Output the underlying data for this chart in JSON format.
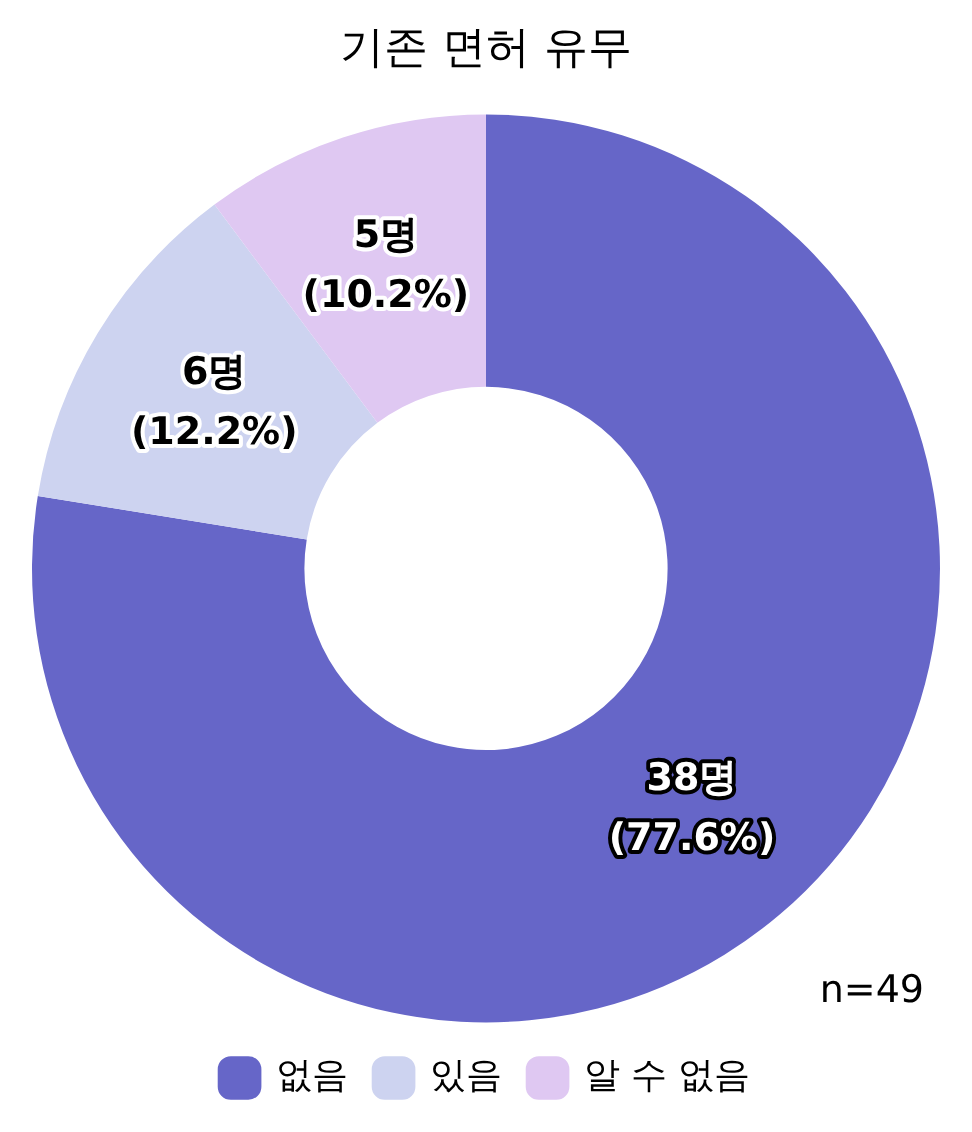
{
  "chart_data": {
    "type": "donut",
    "title": "기존 면허 유무",
    "categories": [
      "없음",
      "있음",
      "알 수 없음"
    ],
    "values": [
      38,
      6,
      5
    ],
    "colors": [
      "#6666c8",
      "#cdd3f0",
      "#dfc8f2"
    ],
    "value_labels": [
      "38명\n(77.6%)",
      "6명\n(12.2%)",
      "5명\n(10.2%)"
    ],
    "annotations": [
      "n=49"
    ],
    "legend": "bottom"
  }
}
